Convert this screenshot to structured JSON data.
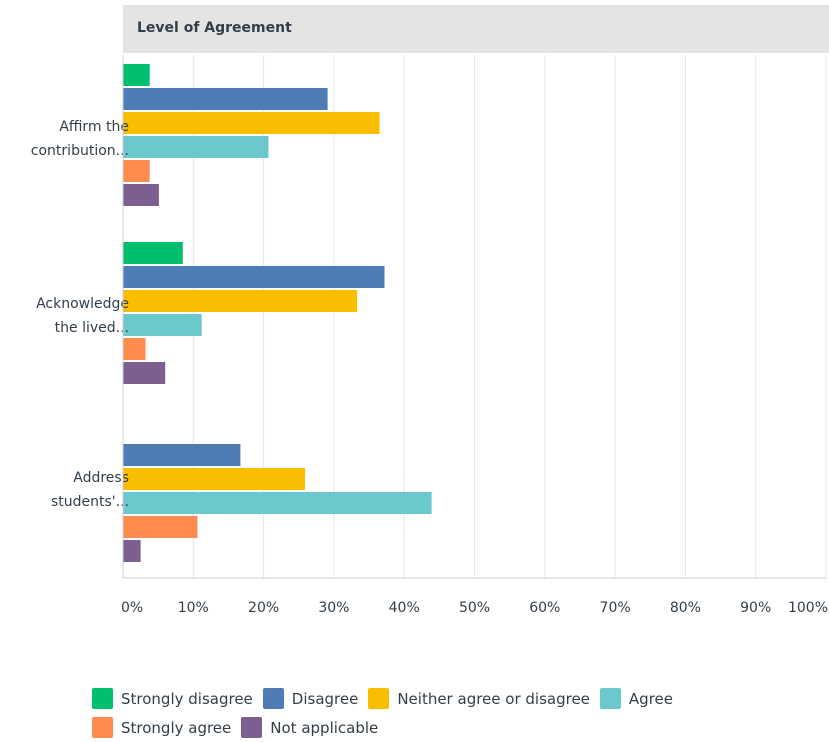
{
  "chart_data": {
    "type": "bar",
    "orientation": "horizontal",
    "header": "Level of Agreement",
    "categories": [
      "Affirm the contribution...",
      "Acknowledge the lived...",
      "Address students'..."
    ],
    "category_lines": [
      [
        "Affirm the",
        "contribution..."
      ],
      [
        "Acknowledge",
        "the lived..."
      ],
      [
        "Address",
        "students'..."
      ]
    ],
    "series": [
      {
        "name": "Strongly disagree",
        "color": "#00bf6f",
        "values": [
          3.8,
          8.5,
          0
        ]
      },
      {
        "name": "Disagree",
        "color": "#507cb6",
        "values": [
          29.1,
          37.2,
          16.7
        ]
      },
      {
        "name": "Neither agree or disagree",
        "color": "#f9be00",
        "values": [
          36.5,
          33.3,
          25.9
        ]
      },
      {
        "name": "Agree",
        "color": "#6bc8cd",
        "values": [
          20.7,
          11.2,
          43.9
        ]
      },
      {
        "name": "Strongly agree",
        "color": "#ff8b4f",
        "values": [
          3.8,
          3.2,
          10.6
        ]
      },
      {
        "name": "Not applicable",
        "color": "#7d5e90",
        "values": [
          5.1,
          6.0,
          2.5
        ]
      }
    ],
    "x_ticks": [
      "0%",
      "10%",
      "20%",
      "30%",
      "40%",
      "50%",
      "60%",
      "70%",
      "80%",
      "90%",
      "100%"
    ],
    "xlim": [
      0,
      100
    ],
    "grid": true,
    "legend_position": "bottom"
  },
  "legend_rows": [
    [
      0,
      1,
      2,
      3
    ],
    [
      4,
      5
    ]
  ]
}
